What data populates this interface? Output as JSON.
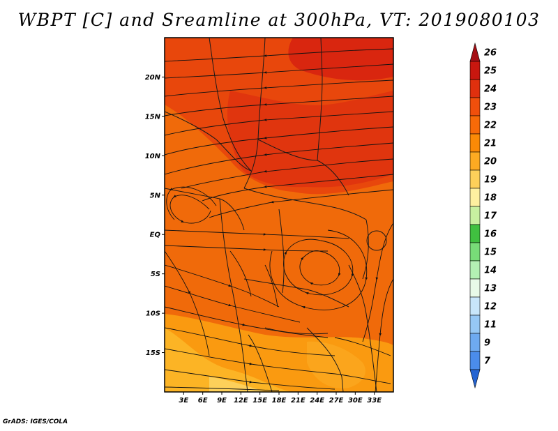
{
  "title": "WBPT [C] and Sreamline at 300hPa, VT: 2019080103",
  "credit": "GrADS: IGES/COLA",
  "map": {
    "lon_range": [
      0,
      36
    ],
    "lat_range": [
      -20,
      25
    ],
    "lat_ticks": [
      {
        "value": 20,
        "label": "20N"
      },
      {
        "value": 15,
        "label": "15N"
      },
      {
        "value": 10,
        "label": "10N"
      },
      {
        "value": 5,
        "label": "5N"
      },
      {
        "value": 0,
        "label": "EQ"
      },
      {
        "value": -5,
        "label": "5S"
      },
      {
        "value": -10,
        "label": "10S"
      },
      {
        "value": -15,
        "label": "15S"
      }
    ],
    "lon_ticks": [
      {
        "value": 3,
        "label": "3E"
      },
      {
        "value": 6,
        "label": "6E"
      },
      {
        "value": 9,
        "label": "9E"
      },
      {
        "value": 12,
        "label": "12E"
      },
      {
        "value": 15,
        "label": "15E"
      },
      {
        "value": 18,
        "label": "18E"
      },
      {
        "value": 21,
        "label": "21E"
      },
      {
        "value": 24,
        "label": "24E"
      },
      {
        "value": 27,
        "label": "27E"
      },
      {
        "value": 30,
        "label": "30E"
      },
      {
        "value": 33,
        "label": "33E"
      }
    ]
  },
  "colorbar": {
    "labels": [
      "26",
      "25",
      "24",
      "23",
      "22",
      "21",
      "20",
      "19",
      "18",
      "17",
      "16",
      "15",
      "14",
      "13",
      "12",
      "11",
      "9",
      "7"
    ],
    "colors": [
      "#a50f15",
      "#c8170f",
      "#e0300e",
      "#f04f0c",
      "#f76a08",
      "#fb8a06",
      "#fcaa22",
      "#fdd05a",
      "#fef0a0",
      "#c8f0a0",
      "#40c040",
      "#78dc78",
      "#b4f0b4",
      "#e8fae8",
      "#c8e6fa",
      "#96c8f5",
      "#6eaaf0",
      "#4b8ceb",
      "#2464d2"
    ]
  }
}
